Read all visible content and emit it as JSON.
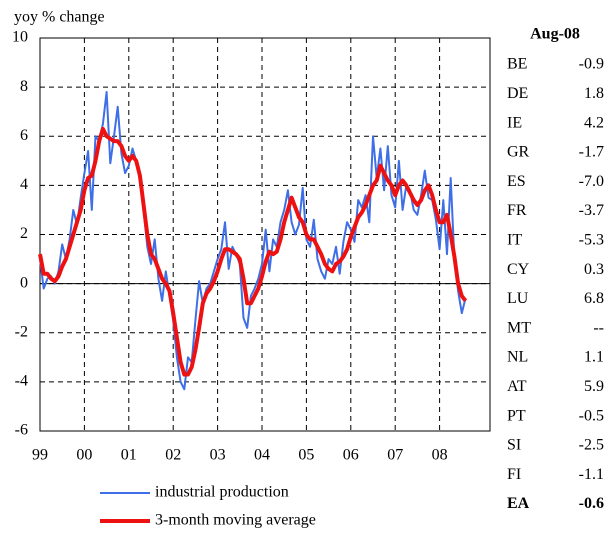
{
  "chart_data": {
    "type": "line",
    "ylabel": "yoy % change",
    "categories": [
      "99",
      null,
      null,
      null,
      null,
      null,
      null,
      null,
      null,
      null,
      null,
      null,
      "00",
      null,
      null,
      null,
      null,
      null,
      null,
      null,
      null,
      null,
      null,
      null,
      "01",
      null,
      null,
      null,
      null,
      null,
      null,
      null,
      null,
      null,
      null,
      null,
      "02",
      null,
      null,
      null,
      null,
      null,
      null,
      null,
      null,
      null,
      null,
      null,
      "03",
      null,
      null,
      null,
      null,
      null,
      null,
      null,
      null,
      null,
      null,
      null,
      "04",
      null,
      null,
      null,
      null,
      null,
      null,
      null,
      null,
      null,
      null,
      null,
      "05",
      null,
      null,
      null,
      null,
      null,
      null,
      null,
      null,
      null,
      null,
      null,
      "06",
      null,
      null,
      null,
      null,
      null,
      null,
      null,
      null,
      null,
      null,
      null,
      "07",
      null,
      null,
      null,
      null,
      null,
      null,
      null,
      null,
      null,
      null,
      null,
      "08",
      null,
      null,
      null,
      null,
      null,
      null,
      null
    ],
    "series": [
      {
        "name": "industrial production",
        "color": "#3f6fe6",
        "width": 2,
        "values": [
          1.0,
          -0.2,
          0.2,
          0.3,
          0.0,
          0.5,
          1.6,
          1.0,
          1.8,
          3.0,
          2.4,
          3.5,
          4.5,
          5.4,
          3.0,
          6.0,
          5.8,
          6.5,
          7.8,
          4.9,
          6.0,
          7.2,
          5.3,
          4.5,
          4.8,
          5.5,
          5.0,
          4.2,
          3.0,
          1.5,
          0.8,
          1.8,
          0.2,
          -0.7,
          0.5,
          -0.5,
          -1.5,
          -3.0,
          -4.0,
          -4.3,
          -3.0,
          -3.2,
          -1.5,
          0.1,
          -0.8,
          -0.2,
          0.0,
          0.5,
          1.0,
          1.4,
          2.5,
          0.6,
          1.5,
          1.2,
          0.8,
          -1.4,
          -1.8,
          -0.5,
          -0.2,
          0.2,
          0.8,
          2.2,
          0.5,
          1.8,
          1.5,
          2.5,
          3.0,
          3.8,
          2.5,
          2.0,
          2.4,
          3.9,
          1.8,
          1.5,
          2.6,
          1.0,
          0.5,
          0.2,
          1.0,
          0.8,
          1.5,
          0.4,
          1.7,
          2.5,
          2.2,
          1.7,
          3.4,
          3.1,
          3.6,
          2.5,
          6.0,
          4.3,
          5.5,
          3.8,
          5.6,
          3.6,
          3.1,
          5.0,
          3.0,
          4.0,
          3.8,
          3.0,
          2.8,
          3.6,
          4.6,
          3.5,
          3.4,
          2.6,
          1.4,
          3.4,
          1.2,
          4.3,
          1.0,
          -0.3,
          -1.2,
          -0.6
        ]
      },
      {
        "name": "3-month moving average",
        "color": "#ee1111",
        "width": 4,
        "values": [
          1.2,
          0.4,
          0.4,
          0.2,
          0.1,
          0.3,
          0.7,
          1.0,
          1.5,
          2.0,
          2.5,
          3.0,
          3.8,
          4.3,
          4.4,
          5.0,
          5.8,
          6.3,
          6.0,
          5.9,
          5.8,
          5.8,
          5.6,
          5.2,
          5.0,
          5.2,
          5.0,
          4.4,
          3.2,
          2.0,
          1.2,
          1.0,
          0.6,
          0.2,
          0.0,
          -0.3,
          -1.2,
          -2.2,
          -3.2,
          -3.7,
          -3.7,
          -3.4,
          -2.7,
          -1.8,
          -0.8,
          -0.4,
          -0.2,
          0.1,
          0.5,
          1.0,
          1.4,
          1.4,
          1.3,
          1.2,
          1.0,
          0.2,
          -0.8,
          -0.8,
          -0.5,
          -0.2,
          0.3,
          0.9,
          1.3,
          1.2,
          1.3,
          1.8,
          2.5,
          3.0,
          3.5,
          3.1,
          2.7,
          2.5,
          2.0,
          1.8,
          1.8,
          1.5,
          1.2,
          0.8,
          0.6,
          0.5,
          0.8,
          0.9,
          1.1,
          1.4,
          1.9,
          2.3,
          2.7,
          2.9,
          3.2,
          3.6,
          4.0,
          4.2,
          4.8,
          4.5,
          4.2,
          4.0,
          3.6,
          4.0,
          4.2,
          4.0,
          3.7,
          3.4,
          3.2,
          3.4,
          3.8,
          4.0,
          3.6,
          3.0,
          2.5,
          2.5,
          2.8,
          2.0,
          1.1,
          0.0,
          -0.5,
          -0.7
        ]
      }
    ],
    "ylim": [
      -6,
      10
    ],
    "yticks": [
      -6,
      -4,
      -2,
      0,
      2,
      4,
      6,
      8,
      10
    ],
    "grid": true
  },
  "table": {
    "header": "Aug-08",
    "rows": [
      [
        "BE",
        "-0.9"
      ],
      [
        "DE",
        "1.8"
      ],
      [
        "IE",
        "4.2"
      ],
      [
        "GR",
        "-1.7"
      ],
      [
        "ES",
        "-7.0"
      ],
      [
        "FR",
        "-3.7"
      ],
      [
        "IT",
        "-5.3"
      ],
      [
        "CY",
        "0.3"
      ],
      [
        "LU",
        "6.8"
      ],
      [
        "MT",
        "--"
      ],
      [
        "NL",
        "1.1"
      ],
      [
        "AT",
        "5.9"
      ],
      [
        "PT",
        "-0.5"
      ],
      [
        "SI",
        "-2.5"
      ],
      [
        "FI",
        "-1.1"
      ],
      [
        "EA",
        "-0.6"
      ]
    ]
  }
}
